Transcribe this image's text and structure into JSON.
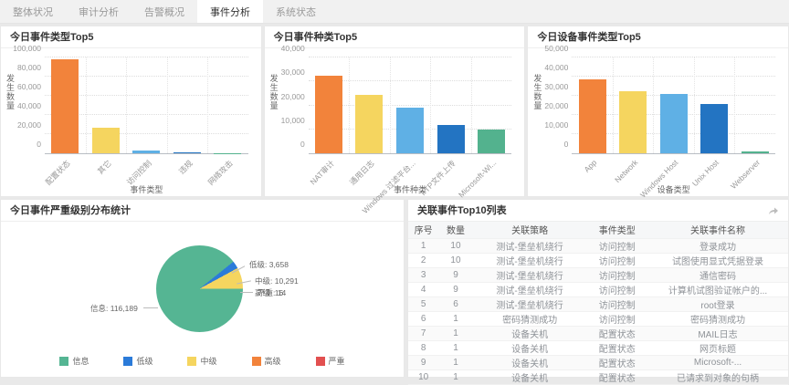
{
  "tabs": [
    {
      "label": "整体状况",
      "active": false
    },
    {
      "label": "审计分析",
      "active": false
    },
    {
      "label": "告警概况",
      "active": false
    },
    {
      "label": "事件分析",
      "active": true
    },
    {
      "label": "系统状态",
      "active": false
    }
  ],
  "palette": [
    "#F2833B",
    "#F5D55F",
    "#5FB0E5",
    "#2374C2",
    "#53B28E"
  ],
  "chart_data": [
    {
      "type": "bar",
      "title": "今日事件类型Top5",
      "ylabel": "发生数量",
      "xlabel": "事件类型",
      "ylim": [
        0,
        100000
      ],
      "yticks": [
        "0",
        "20,000",
        "40,000",
        "60,000",
        "80,000",
        "100,000"
      ],
      "categories": [
        "配置状态",
        "其它",
        "访问控制",
        "违规",
        "网络攻击"
      ],
      "values": [
        98500,
        26500,
        2500,
        1200,
        300
      ],
      "grid": true,
      "colors": [
        "#F2833B",
        "#F5D55F",
        "#5FB0E5",
        "#2374C2",
        "#53B28E"
      ]
    },
    {
      "type": "bar",
      "title": "今日事件种类Top5",
      "ylabel": "发生数量",
      "xlabel": "事件种类",
      "ylim": [
        0,
        40000
      ],
      "yticks": [
        "0",
        "10,000",
        "20,000",
        "30,000",
        "40,000"
      ],
      "categories": [
        "NAT审计",
        "通用日志",
        "Windows 过滤平台...",
        "FTP文件上传",
        "Microsoft-Wi..."
      ],
      "values": [
        32300,
        24300,
        19000,
        12000,
        10100
      ],
      "grid": true,
      "colors": [
        "#F2833B",
        "#F5D55F",
        "#5FB0E5",
        "#2374C2",
        "#53B28E"
      ]
    },
    {
      "type": "bar",
      "title": "今日设备事件类型Top5",
      "ylabel": "发生数量",
      "xlabel": "设备类型",
      "ylim": [
        0,
        50000
      ],
      "yticks": [
        "0",
        "10,000",
        "20,000",
        "30,000",
        "40,000",
        "50,000"
      ],
      "categories": [
        "App",
        "Network",
        "Windows Host",
        "Unix Host",
        "Webserver"
      ],
      "values": [
        38700,
        32300,
        31000,
        25500,
        1000
      ],
      "grid": true,
      "colors": [
        "#F2833B",
        "#F5D55F",
        "#5FB0E5",
        "#2374C2",
        "#53B28E"
      ]
    },
    {
      "type": "pie",
      "title": "今日事件严重级别分布统计",
      "slices": [
        {
          "label": "信息",
          "value": 116189,
          "display": "信息: 116,189",
          "color": "#55B593"
        },
        {
          "label": "低级",
          "value": 3658,
          "display": "低级: 3,658",
          "color": "#2B7BD9"
        },
        {
          "label": "中级",
          "value": 10291,
          "display": "中级: 10,291",
          "color": "#F5D55F"
        },
        {
          "label": "高级",
          "value": 16,
          "display": "高级: 16",
          "color": "#F2833B"
        },
        {
          "label": "严重",
          "value": 14,
          "display": "严重: 14",
          "color": "#E25050"
        }
      ],
      "legend": [
        "信息",
        "低级",
        "中级",
        "高级",
        "严重"
      ],
      "legend_position": "bottom"
    }
  ],
  "table": {
    "title": "关联事件Top10列表",
    "corner_icon": "share-arrow",
    "columns": [
      "序号",
      "数量",
      "关联策略",
      "事件类型",
      "关联事件名称"
    ],
    "col_widths": [
      "8%",
      "9%",
      "30%",
      "16%",
      "37%"
    ],
    "rows": [
      [
        "1",
        "10",
        "测试-堡垒机绕行",
        "访问控制",
        "登录成功"
      ],
      [
        "2",
        "10",
        "测试-堡垒机绕行",
        "访问控制",
        "试图使用显式凭据登录"
      ],
      [
        "3",
        "9",
        "测试-堡垒机绕行",
        "访问控制",
        "通信密码"
      ],
      [
        "4",
        "9",
        "测试-堡垒机绕行",
        "访问控制",
        "计算机试图验证帐户的..."
      ],
      [
        "5",
        "6",
        "测试-堡垒机绕行",
        "访问控制",
        "root登录"
      ],
      [
        "6",
        "1",
        "密码猜测成功",
        "访问控制",
        "密码猜测成功"
      ],
      [
        "7",
        "1",
        "设备关机",
        "配置状态",
        "MAIL日志"
      ],
      [
        "8",
        "1",
        "设备关机",
        "配置状态",
        "网页标题"
      ],
      [
        "9",
        "1",
        "设备关机",
        "配置状态",
        "Microsoft-..."
      ],
      [
        "10",
        "1",
        "设备关机",
        "配置状态",
        "已请求到对象的句柄"
      ]
    ]
  }
}
